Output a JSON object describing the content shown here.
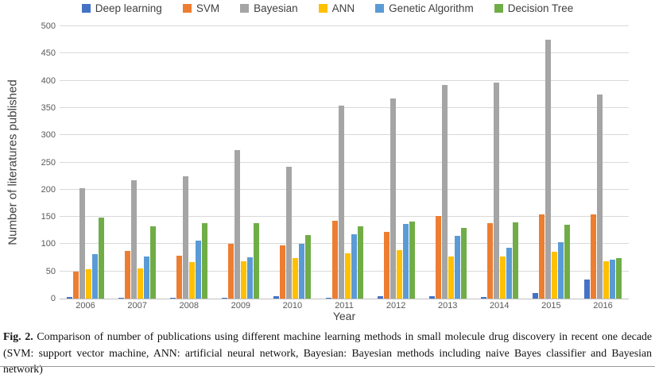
{
  "chart_data": {
    "type": "bar",
    "categories": [
      "2006",
      "2007",
      "2008",
      "2009",
      "2010",
      "2011",
      "2012",
      "2013",
      "2014",
      "2015",
      "2016"
    ],
    "series": [
      {
        "name": "Deep learning",
        "color": "#4472C4",
        "values": [
          3,
          1,
          1,
          1,
          5,
          1,
          4,
          4,
          3,
          10,
          35
        ]
      },
      {
        "name": "SVM",
        "color": "#ED7D31",
        "values": [
          50,
          88,
          79,
          100,
          97,
          143,
          122,
          151,
          138,
          155,
          155
        ]
      },
      {
        "name": "Bayesian",
        "color": "#A5A5A5",
        "values": [
          203,
          217,
          224,
          272,
          242,
          354,
          367,
          392,
          396,
          475,
          374
        ]
      },
      {
        "name": "ANN",
        "color": "#FFC000",
        "values": [
          54,
          56,
          67,
          68,
          75,
          83,
          89,
          78,
          77,
          86,
          68
        ]
      },
      {
        "name": "Genetic Algorithm",
        "color": "#5B9BD5",
        "values": [
          82,
          77,
          106,
          76,
          100,
          118,
          137,
          115,
          94,
          103,
          72
        ]
      },
      {
        "name": "Decision Tree",
        "color": "#70AD47",
        "values": [
          148,
          133,
          138,
          139,
          116,
          133,
          141,
          130,
          140,
          135,
          75
        ]
      }
    ],
    "xlabel": "Year",
    "ylabel": "Number of literatures published",
    "ylim": [
      0,
      500
    ],
    "ytick_step": 50,
    "yticks": [
      "0",
      "50",
      "100",
      "150",
      "200",
      "250",
      "300",
      "350",
      "400",
      "450",
      "500"
    ],
    "legend_position": "top",
    "grid": "horizontal"
  },
  "caption": {
    "fig_label": "Fig. 2.",
    "text": "Comparison of number of publications using different machine learning methods in small molecule drug discovery in recent one decade (SVM: support vector machine, ANN: artificial neural network, Bayesian: Bayesian methods including naive Bayes classifier and Bayesian network)"
  },
  "colors": {
    "gridline": "#D9D9D9",
    "axis_line": "#BFBFBF",
    "tick_text": "#595959",
    "axis_title_text": "#404040"
  }
}
